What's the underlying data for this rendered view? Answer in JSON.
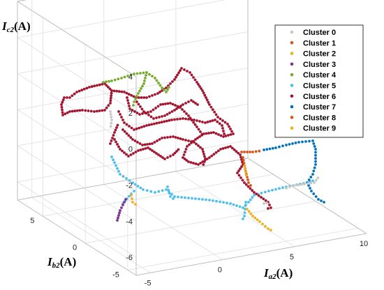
{
  "chart_data": {
    "type": "scatter",
    "title": "",
    "axes": {
      "x": {
        "var": "I",
        "sub": "a2",
        "unit": "(A)",
        "ticks": [
          "-5",
          "0",
          "5",
          "10"
        ],
        "range": [
          -6,
          10
        ]
      },
      "y": {
        "var": "I",
        "sub": "b2",
        "unit": "(A)",
        "ticks": [
          "-5",
          "0",
          "5"
        ],
        "range": [
          -6,
          8
        ]
      },
      "z": {
        "var": "I",
        "sub": "c2",
        "unit": "(A)",
        "ticks": [
          "4",
          "2",
          "0",
          "-2",
          "-4",
          "-6"
        ],
        "range": [
          -7,
          4
        ]
      }
    },
    "grid": true,
    "legend_position": "top-right",
    "series": [
      {
        "name": "Cluster 0",
        "color": "#c8c8c8"
      },
      {
        "name": "Cluster 1",
        "color": "#d95319"
      },
      {
        "name": "Cluster 2",
        "color": "#edb120"
      },
      {
        "name": "Cluster 3",
        "color": "#7e2f8e"
      },
      {
        "name": "Cluster 4",
        "color": "#77ac30"
      },
      {
        "name": "Cluster 5",
        "color": "#4dbeee"
      },
      {
        "name": "Cluster 6",
        "color": "#a2142f"
      },
      {
        "name": "Cluster 7",
        "color": "#0072bd"
      },
      {
        "name": "Cluster 8",
        "color": "#d95319"
      },
      {
        "name": "Cluster 9",
        "color": "#edb120"
      }
    ]
  }
}
